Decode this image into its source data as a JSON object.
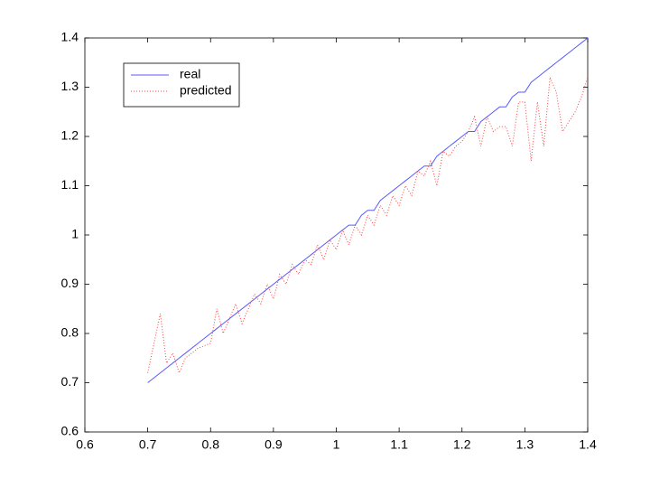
{
  "chart_data": {
    "type": "line",
    "x": [
      0.7,
      0.72,
      0.73,
      0.74,
      0.75,
      0.76,
      0.78,
      0.8,
      0.81,
      0.82,
      0.83,
      0.84,
      0.85,
      0.86,
      0.87,
      0.88,
      0.89,
      0.9,
      0.91,
      0.92,
      0.93,
      0.94,
      0.95,
      0.96,
      0.97,
      0.98,
      0.99,
      1.0,
      1.01,
      1.02,
      1.03,
      1.04,
      1.05,
      1.06,
      1.07,
      1.08,
      1.09,
      1.1,
      1.11,
      1.12,
      1.13,
      1.14,
      1.15,
      1.16,
      1.17,
      1.18,
      1.19,
      1.2,
      1.21,
      1.22,
      1.23,
      1.24,
      1.25,
      1.26,
      1.27,
      1.28,
      1.29,
      1.3,
      1.31,
      1.32,
      1.33,
      1.34,
      1.35,
      1.36,
      1.37,
      1.38,
      1.39,
      1.4
    ],
    "series": [
      {
        "name": "real",
        "color": "#5a5aff",
        "dash": "none",
        "values": [
          0.7,
          0.72,
          0.73,
          0.74,
          0.75,
          0.76,
          0.78,
          0.8,
          0.81,
          0.82,
          0.83,
          0.84,
          0.85,
          0.86,
          0.87,
          0.88,
          0.89,
          0.9,
          0.91,
          0.92,
          0.93,
          0.94,
          0.95,
          0.96,
          0.97,
          0.98,
          0.99,
          1.0,
          1.01,
          1.02,
          1.02,
          1.04,
          1.05,
          1.05,
          1.07,
          1.08,
          1.09,
          1.1,
          1.11,
          1.12,
          1.13,
          1.14,
          1.14,
          1.16,
          1.17,
          1.18,
          1.19,
          1.2,
          1.21,
          1.21,
          1.23,
          1.24,
          1.25,
          1.26,
          1.26,
          1.28,
          1.29,
          1.29,
          1.31,
          1.32,
          1.33,
          1.34,
          1.35,
          1.36,
          1.37,
          1.38,
          1.39,
          1.4
        ]
      },
      {
        "name": "predicted",
        "color": "#ff4040",
        "dash": "1,2",
        "values": [
          0.72,
          0.84,
          0.74,
          0.76,
          0.72,
          0.75,
          0.77,
          0.78,
          0.85,
          0.8,
          0.83,
          0.86,
          0.82,
          0.85,
          0.88,
          0.86,
          0.9,
          0.87,
          0.92,
          0.9,
          0.94,
          0.92,
          0.95,
          0.94,
          0.98,
          0.95,
          0.99,
          0.97,
          1.01,
          0.98,
          1.02,
          1.0,
          1.04,
          1.02,
          1.06,
          1.04,
          1.08,
          1.06,
          1.1,
          1.08,
          1.13,
          1.12,
          1.15,
          1.1,
          1.17,
          1.16,
          1.18,
          1.19,
          1.21,
          1.24,
          1.18,
          1.24,
          1.21,
          1.22,
          1.22,
          1.18,
          1.27,
          1.27,
          1.15,
          1.27,
          1.18,
          1.32,
          1.29,
          1.21,
          1.23,
          1.25,
          1.28,
          1.32
        ]
      }
    ],
    "xlim": [
      0.6,
      1.4
    ],
    "ylim": [
      0.6,
      1.4
    ],
    "xticks": [
      0.6,
      0.7,
      0.8,
      0.9,
      1,
      1.1,
      1.2,
      1.3,
      1.4
    ],
    "yticks": [
      0.6,
      0.7,
      0.8,
      0.9,
      1,
      1.1,
      1.2,
      1.3,
      1.4
    ],
    "grid": false,
    "legend": "upper left"
  }
}
